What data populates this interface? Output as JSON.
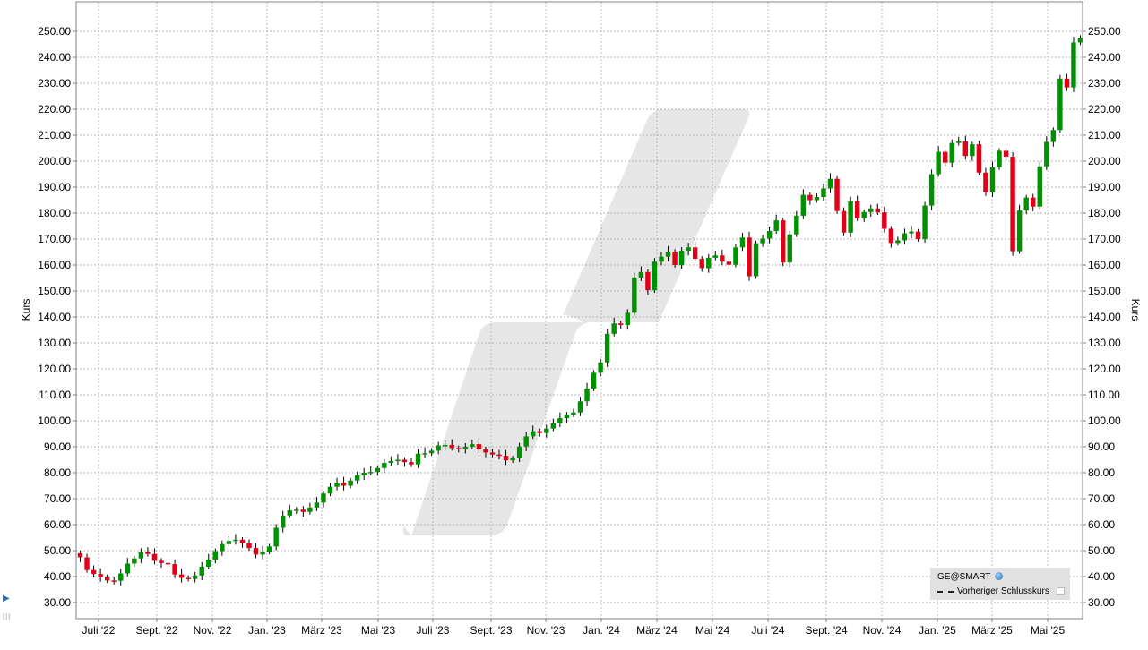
{
  "chart_data": {
    "type": "candlestick",
    "ylabel_left": "Kurs",
    "ylabel_right": "Kurs",
    "ylim": [
      25,
      257
    ],
    "yticks": [
      "30.00",
      "40.00",
      "50.00",
      "60.00",
      "70.00",
      "80.00",
      "90.00",
      "100.00",
      "110.00",
      "120.00",
      "130.00",
      "140.00",
      "150.00",
      "160.00",
      "170.00",
      "180.00",
      "190.00",
      "200.00",
      "210.00",
      "220.00",
      "230.00",
      "240.00",
      "250.00"
    ],
    "x_labels": [
      "Juli '22",
      "Sept. '22",
      "Nov. '22",
      "Jan. '23",
      "März '23",
      "Mai '23",
      "Juli '23",
      "Sept. '23",
      "Nov. '23",
      "Jan. '24",
      "März '24",
      "Mai '24",
      "Juli '24",
      "Sept. '24",
      "Nov. '24",
      "Jan. '25",
      "März '25",
      "Mai '25"
    ],
    "grid": true,
    "legend_position": "bottom-right",
    "colors": {
      "up": "#009100",
      "down": "#e1001a",
      "grid": "#a0a0a0",
      "watermark": "#e6e6e6"
    },
    "closes": [
      47.4,
      42.5,
      41.0,
      39.8,
      38.5,
      38.4,
      41.2,
      45.0,
      47.0,
      49.5,
      48.7,
      46.1,
      45.2,
      44.8,
      40.8,
      39.5,
      39.1,
      40.4,
      43.8,
      46.5,
      49.8,
      52.5,
      53.7,
      54.2,
      52.9,
      51.0,
      48.5,
      49.6,
      51.6,
      58.8,
      63.5,
      65.5,
      65.8,
      64.9,
      66.6,
      68.5,
      72.0,
      74.6,
      76.2,
      75.0,
      77.0,
      79.0,
      80.0,
      80.3,
      81.8,
      83.8,
      84.5,
      85.0,
      84.1,
      83.2,
      87.3,
      87.5,
      88.5,
      90.5,
      90.7,
      89.5,
      89.2,
      90.0,
      91.0,
      89.0,
      87.8,
      87.0,
      86.5,
      84.8,
      85.5,
      90.1,
      94.0,
      96.0,
      95.3,
      97.0,
      99.0,
      101.0,
      102.4,
      103.2,
      107.5,
      112.4,
      118.5,
      122.5,
      133.5,
      137.5,
      136.9,
      141.6,
      155.2,
      157.3,
      150.3,
      161.3,
      163.2,
      165.1,
      160.0,
      165.5,
      166.8,
      162.4,
      158.8,
      162.8,
      163.7,
      161.3,
      160.1,
      166.8,
      170.6,
      155.7,
      168.4,
      170.2,
      173.1,
      177.2,
      161.0,
      171.8,
      179.0,
      187.0,
      185.0,
      186.2,
      189.5,
      193.2,
      180.8,
      172.5,
      184.5,
      178.0,
      180.4,
      181.8,
      180.3,
      174.0,
      168.5,
      169.5,
      172.2,
      172.9,
      170.0,
      182.9,
      195.0,
      203.6,
      199.4,
      207.0,
      207.6,
      202.0,
      206.5,
      195.6,
      188.0,
      197.6,
      204.0,
      201.7,
      165.3,
      181.0,
      186.0,
      182.5,
      198.0,
      207.4,
      212.0,
      231.8,
      228.4,
      245.7,
      247.5
    ]
  },
  "watermark_shape": true,
  "legend": {
    "title": "GE@SMART",
    "item_label": "Vorheriger Schlusskurs"
  }
}
